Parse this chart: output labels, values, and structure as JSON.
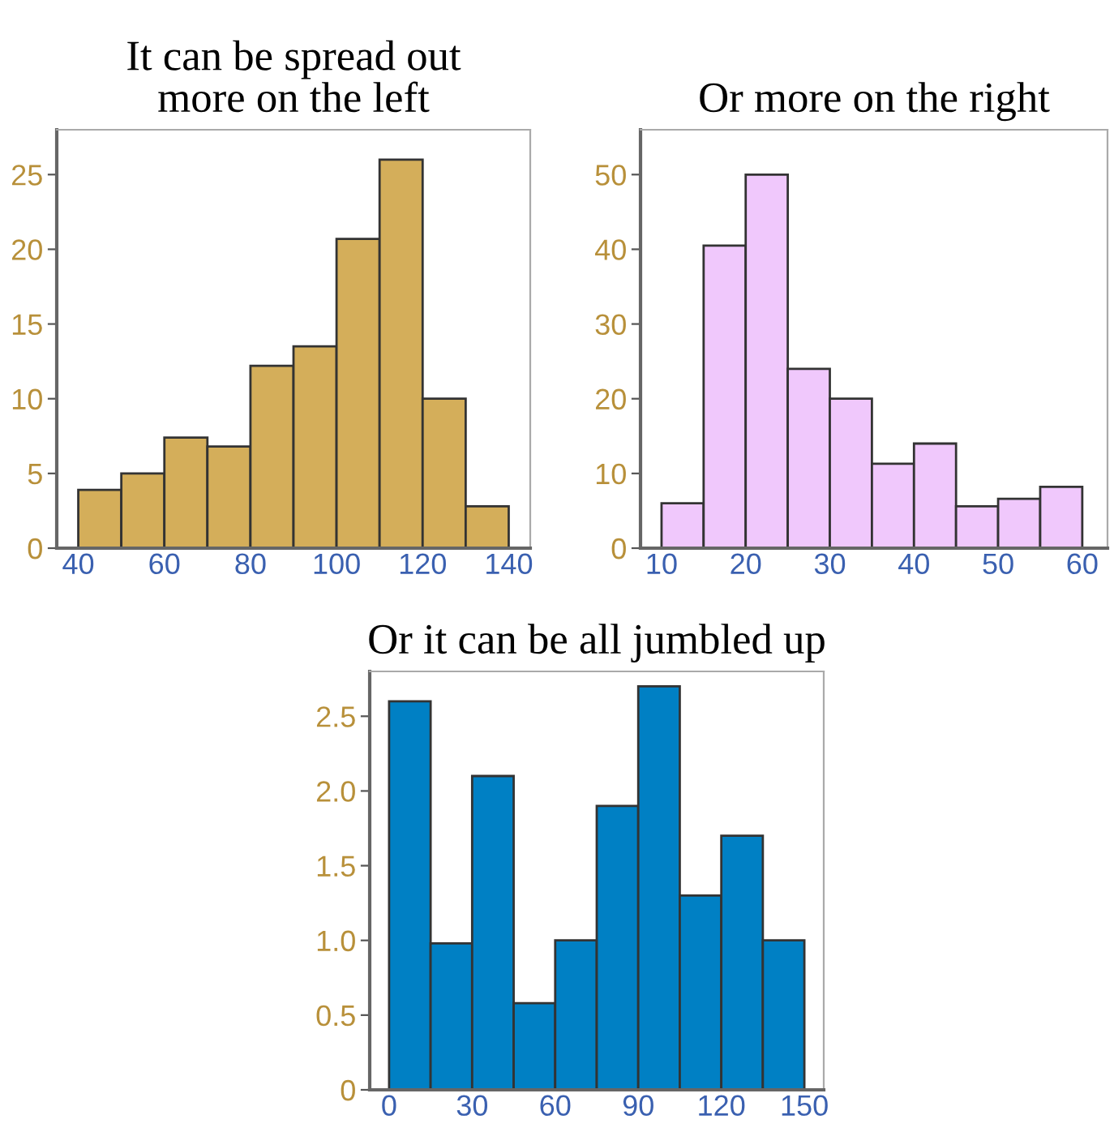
{
  "chart_data": [
    {
      "type": "histogram",
      "title": "It can be spread out\nmore on the left",
      "bins": [
        40,
        50,
        60,
        70,
        80,
        90,
        100,
        110,
        120,
        130,
        140
      ],
      "values": [
        3.9,
        5,
        7.4,
        6.8,
        12.2,
        13.5,
        20.7,
        26,
        10,
        2.8
      ],
      "color": "#d4ae5a",
      "xlim": [
        35,
        145
      ],
      "xticks": [
        40,
        60,
        80,
        100,
        120,
        140
      ],
      "ylim": [
        0,
        28
      ],
      "yticks": [
        0,
        5,
        10,
        15,
        20,
        25
      ],
      "grid": false
    },
    {
      "type": "histogram",
      "title": "Or more on the right",
      "bins": [
        10,
        15,
        20,
        25,
        30,
        35,
        40,
        45,
        50,
        55,
        60
      ],
      "values": [
        6,
        40.5,
        50,
        24,
        20,
        11.3,
        14,
        5.6,
        6.6,
        8.2
      ],
      "color": "#f0c8fc",
      "xlim": [
        7.5,
        63
      ],
      "xticks": [
        10,
        20,
        30,
        40,
        50,
        60
      ],
      "ylim": [
        0,
        56
      ],
      "yticks": [
        0,
        10,
        20,
        30,
        40,
        50
      ],
      "grid": false
    },
    {
      "type": "histogram",
      "title": "Or it can be all jumbled up",
      "bins": [
        0,
        15,
        30,
        45,
        60,
        75,
        90,
        105,
        120,
        135,
        150
      ],
      "values": [
        2.6,
        0.98,
        2.1,
        0.58,
        1.0,
        1.9,
        2.7,
        1.3,
        1.7,
        1.0
      ],
      "color": "#0080c4",
      "xlim": [
        -7,
        157
      ],
      "xticks": [
        0,
        30,
        60,
        90,
        120,
        150
      ],
      "ylim": [
        0,
        2.8
      ],
      "yticks": [
        0,
        0.5,
        "1.0",
        1.5,
        "2.0",
        2.5
      ],
      "grid": false
    }
  ]
}
